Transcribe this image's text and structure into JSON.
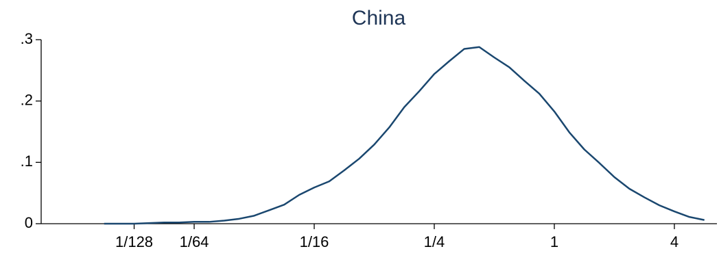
{
  "chart_data": {
    "type": "line",
    "title": "China",
    "x": [
      0.005524,
      0.006569,
      0.007813,
      0.009291,
      0.01105,
      0.01314,
      0.01563,
      0.01858,
      0.0221,
      0.02628,
      0.03125,
      0.03716,
      0.04419,
      0.05256,
      0.0625,
      0.07433,
      0.08839,
      0.1051,
      0.125,
      0.1487,
      0.1768,
      0.2102,
      0.25,
      0.2973,
      0.3536,
      0.4204,
      0.5,
      0.5946,
      0.7071,
      0.8409,
      1,
      1.189,
      1.414,
      1.682,
      2,
      2.378,
      2.828,
      3.364,
      4,
      4.757,
      5.657
    ],
    "values": [
      0,
      0,
      0,
      0.001,
      0.002,
      0.002,
      0.003,
      0.003,
      0.005,
      0.008,
      0.013,
      0.022,
      0.031,
      0.047,
      0.059,
      0.069,
      0.087,
      0.106,
      0.129,
      0.157,
      0.19,
      0.216,
      0.244,
      0.265,
      0.285,
      0.288,
      0.271,
      0.255,
      0.233,
      0.212,
      0.183,
      0.149,
      0.121,
      0.099,
      0.076,
      0.057,
      0.043,
      0.03,
      0.02,
      0.011,
      0.006
    ],
    "color": "#1a476f",
    "xscale": "log",
    "xlim": [
      0.00267,
      6.54
    ],
    "xticks": [
      {
        "value": 0.0078125,
        "label": "1/128"
      },
      {
        "value": 0.015625,
        "label": "1/64"
      },
      {
        "value": 0.0625,
        "label": "1/16"
      },
      {
        "value": 0.25,
        "label": "1/4"
      },
      1,
      4
    ],
    "ylim": [
      0,
      0.3
    ],
    "yticks": [
      0,
      {
        "value": 0.1,
        "label": ".1"
      },
      {
        "value": 0.2,
        "label": ".2"
      },
      {
        "value": 0.3,
        "label": ".3"
      }
    ]
  }
}
